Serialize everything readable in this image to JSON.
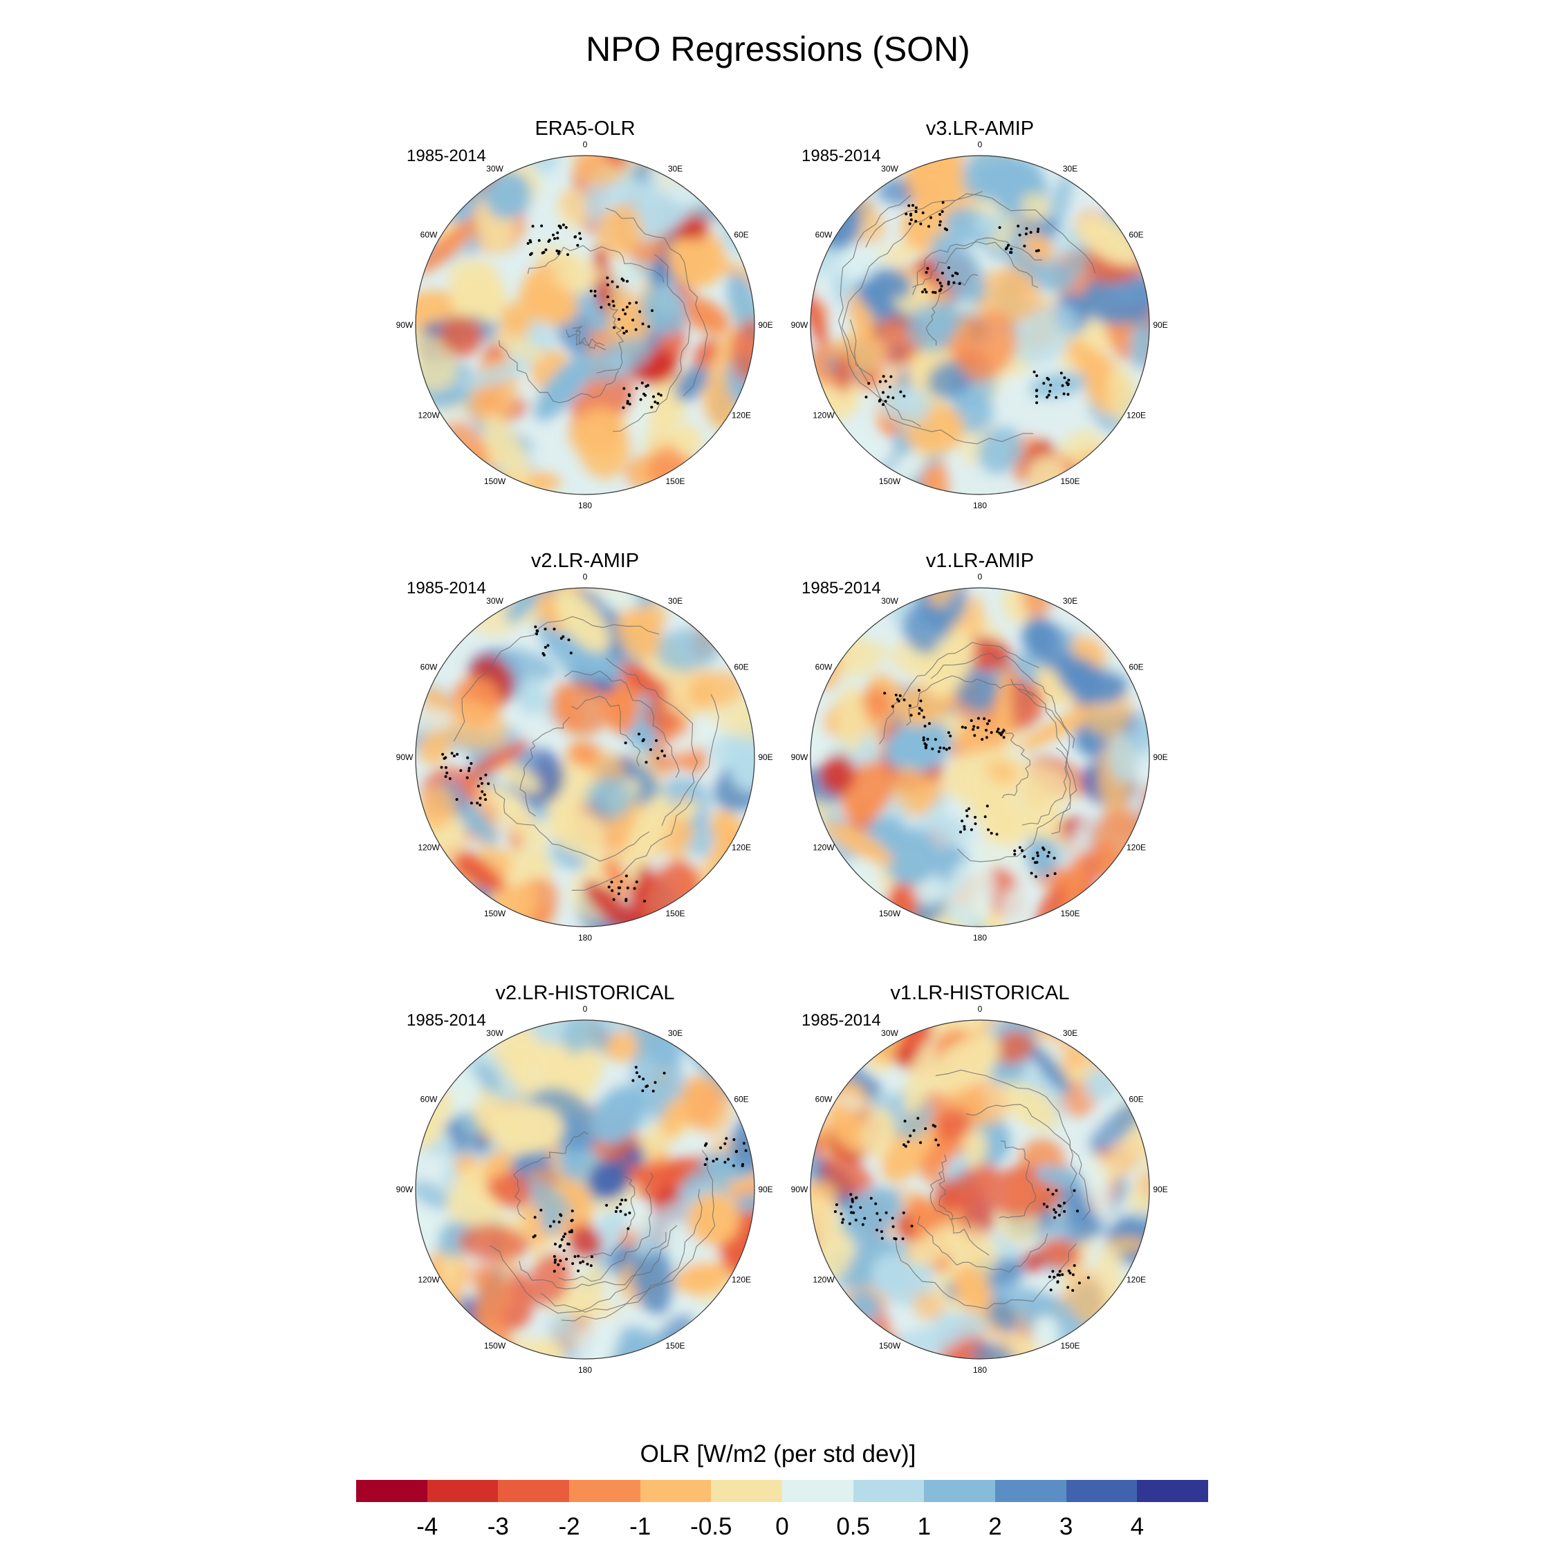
{
  "figure": {
    "title": "NPO Regressions (SON)",
    "colorbar_title": "OLR [W/m2 (per std dev)]",
    "colorbar_ticks": [
      "-4",
      "-3",
      "-2",
      "-1",
      "-0.5",
      "0",
      "0.5",
      "1",
      "2",
      "3",
      "4"
    ],
    "colorbar_colors": [
      "#a50026",
      "#d3302a",
      "#ea5d3c",
      "#f88f52",
      "#fdbe6f",
      "#f6e4a6",
      "#e0f2f0",
      "#b6dcea",
      "#86bbda",
      "#5b8ec4",
      "#4163ae",
      "#313695"
    ]
  },
  "lon_labels": [
    "180",
    "150E",
    "120E",
    "90E",
    "60E",
    "30E",
    "0",
    "30W",
    "60W",
    "90W",
    "120W",
    "150W"
  ],
  "panels": [
    {
      "title": "ERA5-OLR",
      "period": "1985-2014"
    },
    {
      "title": "v3.LR-AMIP",
      "period": "1985-2014"
    },
    {
      "title": "v2.LR-AMIP",
      "period": "1985-2014"
    },
    {
      "title": "v1.LR-AMIP",
      "period": "1985-2014"
    },
    {
      "title": "v2.LR-HISTORICAL",
      "period": "1985-2014"
    },
    {
      "title": "v1.LR-HISTORICAL",
      "period": "1985-2014"
    }
  ]
}
